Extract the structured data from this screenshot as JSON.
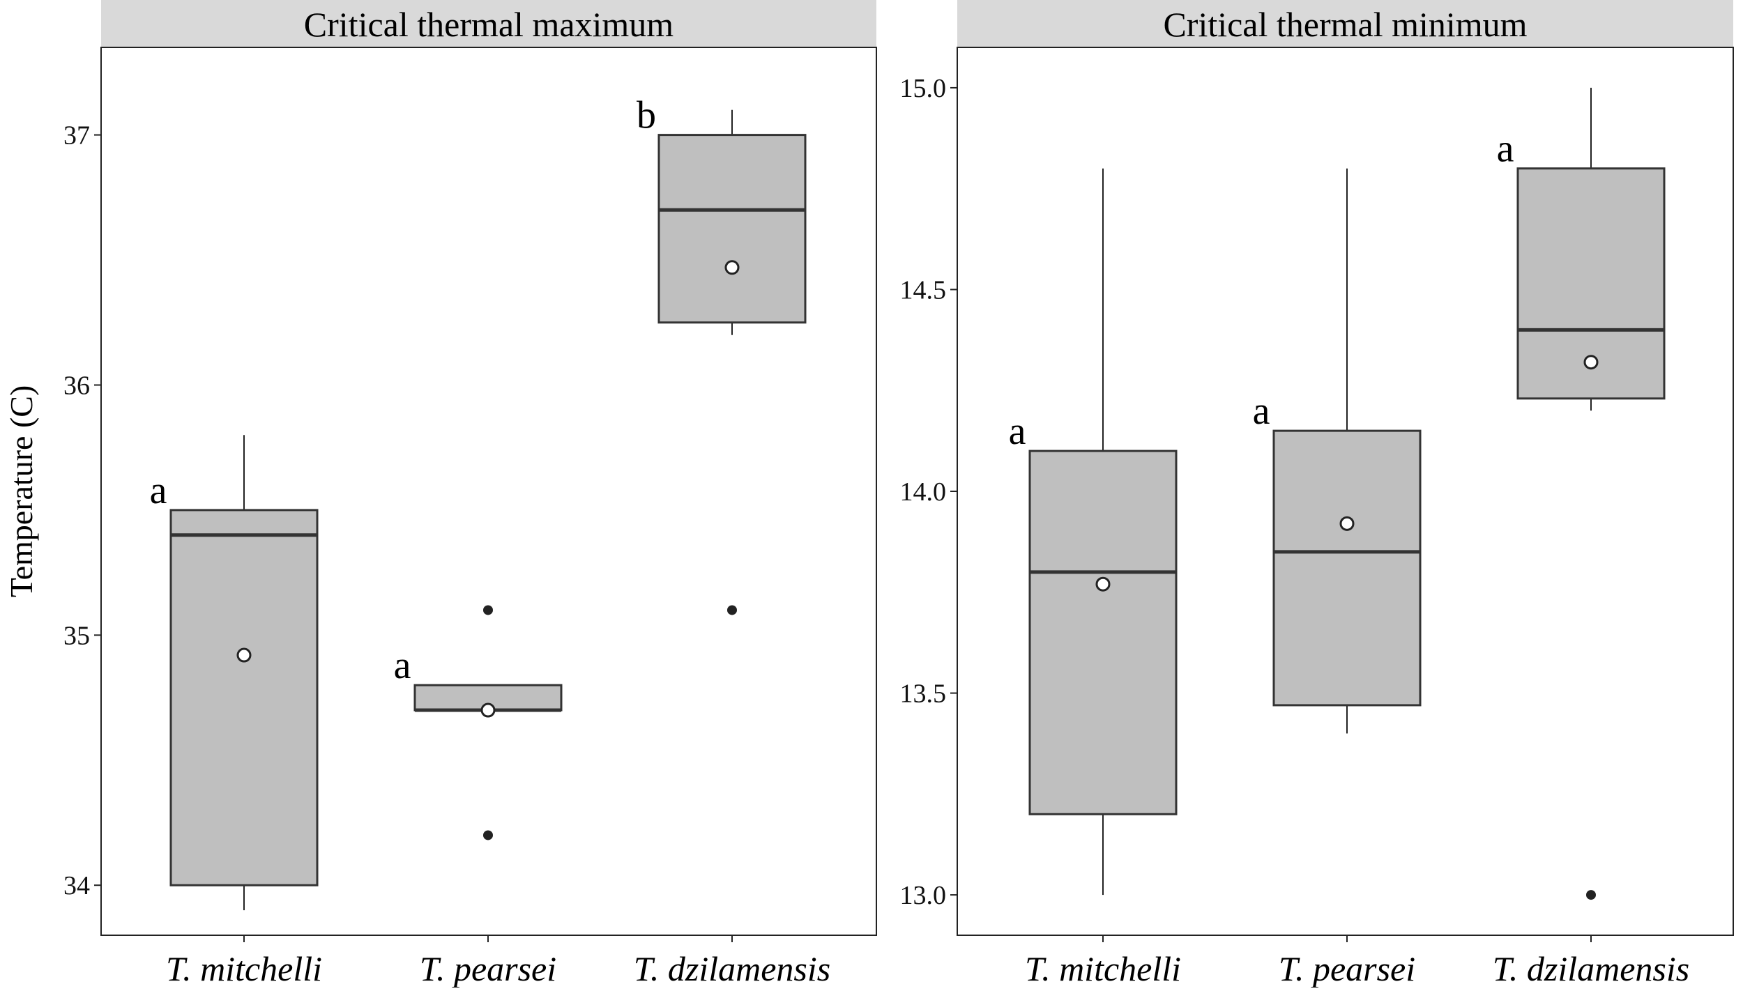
{
  "colors": {
    "box_fill": "#bfbfbf",
    "box_stroke": "#333333",
    "median": "#333333",
    "strip_bg": "#d9d9d9",
    "outlier": "#222222",
    "mean_marker_fill": "#ffffff"
  },
  "chart_data": [
    {
      "type": "box",
      "title": "Critical thermal maximum",
      "ylabel": "Temperature (C)",
      "ylim": [
        33.8,
        37.35
      ],
      "yticks": [
        34,
        35,
        36,
        37
      ],
      "ytick_labels": [
        "34",
        "35",
        "36",
        "37"
      ],
      "categories": [
        "T. mitchelli",
        "T. pearsei",
        "T. dzilamensis"
      ],
      "boxes": [
        {
          "category": "T. mitchelli",
          "whisker_low": 33.9,
          "q1": 34.0,
          "median": 35.4,
          "q3": 35.5,
          "whisker_high": 35.8,
          "mean": 34.92,
          "outliers": [],
          "letter": "a"
        },
        {
          "category": "T. pearsei",
          "whisker_low": 34.7,
          "q1": 34.7,
          "median": 34.7,
          "q3": 34.8,
          "whisker_high": 34.8,
          "mean": 34.7,
          "outliers": [
            35.1,
            34.2
          ],
          "letter": "a"
        },
        {
          "category": "T. dzilamensis",
          "whisker_low": 36.2,
          "q1": 36.25,
          "median": 36.7,
          "q3": 37.0,
          "whisker_high": 37.1,
          "mean": 36.47,
          "outliers": [
            35.1
          ],
          "letter": "b"
        }
      ],
      "grid": false,
      "legend": "none"
    },
    {
      "type": "box",
      "title": "Critical thermal minimum",
      "ylabel": "",
      "ylim": [
        12.9,
        15.1
      ],
      "yticks": [
        13.0,
        13.5,
        14.0,
        14.5,
        15.0
      ],
      "ytick_labels": [
        "13.0",
        "13.5",
        "14.0",
        "14.5",
        "15.0"
      ],
      "categories": [
        "T. mitchelli",
        "T. pearsei",
        "T. dzilamensis"
      ],
      "boxes": [
        {
          "category": "T. mitchelli",
          "whisker_low": 13.0,
          "q1": 13.2,
          "median": 13.8,
          "q3": 14.1,
          "whisker_high": 14.8,
          "mean": 13.77,
          "outliers": [],
          "letter": "a"
        },
        {
          "category": "T. pearsei",
          "whisker_low": 13.4,
          "q1": 13.47,
          "median": 13.85,
          "q3": 14.15,
          "whisker_high": 14.8,
          "mean": 13.92,
          "outliers": [],
          "letter": "a"
        },
        {
          "category": "T. dzilamensis",
          "whisker_low": 14.2,
          "q1": 14.23,
          "median": 14.4,
          "q3": 14.8,
          "whisker_high": 15.0,
          "mean": 14.32,
          "outliers": [
            13.0
          ],
          "letter": "a"
        }
      ],
      "grid": false,
      "legend": "none"
    }
  ]
}
